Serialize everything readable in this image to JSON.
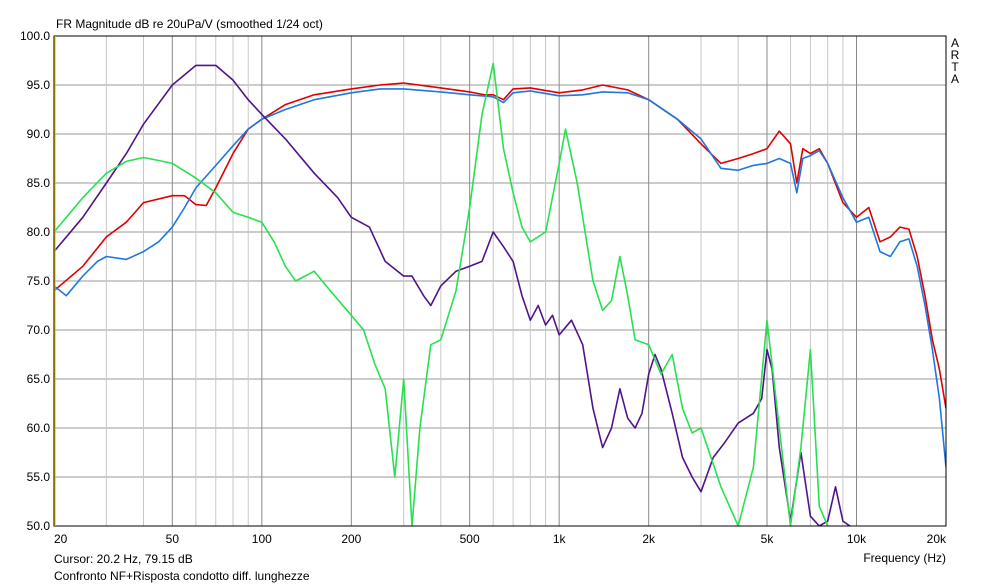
{
  "chart_data": {
    "type": "line",
    "title": "FR Magnitude dB re 20uPa/V (smoothed 1/24 oct)",
    "xlabel": "Frequency (Hz)",
    "ylabel": "",
    "x_scale": "log",
    "xlim": [
      20,
      20000
    ],
    "ylim": [
      50,
      100
    ],
    "grid": true,
    "y_ticks": [
      "100.0",
      "95.0",
      "90.0",
      "85.0",
      "80.0",
      "75.0",
      "70.0",
      "65.0",
      "60.0",
      "55.0",
      "50.0"
    ],
    "x_tick_labels": [
      {
        "f": 20,
        "label": "20"
      },
      {
        "f": 50,
        "label": "50"
      },
      {
        "f": 100,
        "label": "100"
      },
      {
        "f": 200,
        "label": "200"
      },
      {
        "f": 500,
        "label": "500"
      },
      {
        "f": 1000,
        "label": "1k"
      },
      {
        "f": 2000,
        "label": "2k"
      },
      {
        "f": 5000,
        "label": "5k"
      },
      {
        "f": 10000,
        "label": "10k"
      },
      {
        "f": 20000,
        "label": "20k"
      }
    ],
    "watermark": [
      "A",
      "R",
      "T",
      "A"
    ],
    "series": [
      {
        "color": "#e00000",
        "points": [
          [
            20,
            74.0
          ],
          [
            25,
            76.5
          ],
          [
            30,
            79.5
          ],
          [
            35,
            81.0
          ],
          [
            40,
            83.0
          ],
          [
            50,
            83.7
          ],
          [
            55,
            83.7
          ],
          [
            60,
            82.8
          ],
          [
            65,
            82.7
          ],
          [
            70,
            84.5
          ],
          [
            80,
            88.0
          ],
          [
            90,
            90.5
          ],
          [
            100,
            91.5
          ],
          [
            120,
            93.0
          ],
          [
            150,
            94.0
          ],
          [
            200,
            94.6
          ],
          [
            250,
            95.0
          ],
          [
            300,
            95.2
          ],
          [
            400,
            94.7
          ],
          [
            500,
            94.3
          ],
          [
            560,
            94.0
          ],
          [
            600,
            94.0
          ],
          [
            650,
            93.5
          ],
          [
            700,
            94.6
          ],
          [
            800,
            94.7
          ],
          [
            1000,
            94.2
          ],
          [
            1200,
            94.5
          ],
          [
            1400,
            95.0
          ],
          [
            1700,
            94.5
          ],
          [
            2000,
            93.5
          ],
          [
            2500,
            91.5
          ],
          [
            3000,
            89.0
          ],
          [
            3500,
            87.0
          ],
          [
            4000,
            87.5
          ],
          [
            4500,
            88.0
          ],
          [
            5000,
            88.5
          ],
          [
            5500,
            90.3
          ],
          [
            6000,
            89.0
          ],
          [
            6300,
            85.0
          ],
          [
            6600,
            88.5
          ],
          [
            7000,
            88.0
          ],
          [
            7500,
            88.5
          ],
          [
            8000,
            87.0
          ],
          [
            9000,
            83.0
          ],
          [
            10000,
            81.5
          ],
          [
            11000,
            82.5
          ],
          [
            12000,
            79.0
          ],
          [
            13000,
            79.5
          ],
          [
            14000,
            80.5
          ],
          [
            15000,
            80.3
          ],
          [
            16000,
            77.5
          ],
          [
            17000,
            73.5
          ],
          [
            18000,
            69.0
          ],
          [
            19000,
            66.0
          ],
          [
            20000,
            62.0
          ]
        ]
      },
      {
        "color": "#1e78e0",
        "points": [
          [
            20,
            74.5
          ],
          [
            22,
            73.5
          ],
          [
            25,
            75.5
          ],
          [
            28,
            77.0
          ],
          [
            30,
            77.5
          ],
          [
            35,
            77.2
          ],
          [
            40,
            78.0
          ],
          [
            45,
            79.0
          ],
          [
            50,
            80.5
          ],
          [
            55,
            82.5
          ],
          [
            60,
            84.5
          ],
          [
            70,
            86.8
          ],
          [
            80,
            88.8
          ],
          [
            90,
            90.5
          ],
          [
            100,
            91.5
          ],
          [
            120,
            92.5
          ],
          [
            150,
            93.5
          ],
          [
            200,
            94.2
          ],
          [
            250,
            94.6
          ],
          [
            300,
            94.6
          ],
          [
            400,
            94.3
          ],
          [
            500,
            94.0
          ],
          [
            600,
            93.8
          ],
          [
            650,
            93.2
          ],
          [
            700,
            94.2
          ],
          [
            800,
            94.4
          ],
          [
            1000,
            93.9
          ],
          [
            1200,
            94.0
          ],
          [
            1400,
            94.3
          ],
          [
            1700,
            94.2
          ],
          [
            2000,
            93.5
          ],
          [
            2500,
            91.5
          ],
          [
            3000,
            89.5
          ],
          [
            3500,
            86.5
          ],
          [
            4000,
            86.3
          ],
          [
            4500,
            86.8
          ],
          [
            5000,
            87.0
          ],
          [
            5500,
            87.5
          ],
          [
            6000,
            87.0
          ],
          [
            6300,
            84.0
          ],
          [
            6600,
            87.5
          ],
          [
            7000,
            87.8
          ],
          [
            7500,
            88.3
          ],
          [
            8000,
            87.0
          ],
          [
            9000,
            83.5
          ],
          [
            10000,
            81.0
          ],
          [
            11000,
            81.5
          ],
          [
            12000,
            78.0
          ],
          [
            13000,
            77.5
          ],
          [
            14000,
            79.0
          ],
          [
            15000,
            79.3
          ],
          [
            16000,
            76.5
          ],
          [
            17000,
            72.5
          ],
          [
            18000,
            68.0
          ],
          [
            19000,
            63.0
          ],
          [
            20000,
            56.0
          ]
        ]
      },
      {
        "color": "#50148a",
        "points": [
          [
            20,
            78.0
          ],
          [
            25,
            81.5
          ],
          [
            30,
            85.0
          ],
          [
            35,
            88.0
          ],
          [
            40,
            91.0
          ],
          [
            50,
            95.0
          ],
          [
            60,
            97.0
          ],
          [
            70,
            97.0
          ],
          [
            80,
            95.5
          ],
          [
            90,
            93.5
          ],
          [
            100,
            92.0
          ],
          [
            120,
            89.5
          ],
          [
            150,
            86.0
          ],
          [
            180,
            83.5
          ],
          [
            200,
            81.5
          ],
          [
            230,
            80.5
          ],
          [
            260,
            77.0
          ],
          [
            300,
            75.5
          ],
          [
            320,
            75.5
          ],
          [
            350,
            73.5
          ],
          [
            370,
            72.5
          ],
          [
            400,
            74.5
          ],
          [
            450,
            76.0
          ],
          [
            500,
            76.5
          ],
          [
            550,
            77.0
          ],
          [
            600,
            80.0
          ],
          [
            650,
            78.5
          ],
          [
            700,
            77.0
          ],
          [
            750,
            73.5
          ],
          [
            800,
            71.0
          ],
          [
            850,
            72.5
          ],
          [
            900,
            70.5
          ],
          [
            950,
            71.5
          ],
          [
            1000,
            69.5
          ],
          [
            1100,
            71.0
          ],
          [
            1200,
            68.5
          ],
          [
            1300,
            62.0
          ],
          [
            1400,
            58.0
          ],
          [
            1500,
            60.0
          ],
          [
            1600,
            64.0
          ],
          [
            1700,
            61.0
          ],
          [
            1800,
            60.0
          ],
          [
            1900,
            61.5
          ],
          [
            2000,
            65.5
          ],
          [
            2100,
            67.5
          ],
          [
            2200,
            66.0
          ],
          [
            2400,
            61.5
          ],
          [
            2600,
            57.0
          ],
          [
            2800,
            55.0
          ],
          [
            3000,
            53.5
          ],
          [
            3300,
            57.0
          ],
          [
            3600,
            58.5
          ],
          [
            4000,
            60.5
          ],
          [
            4500,
            61.5
          ],
          [
            4800,
            63.0
          ],
          [
            5000,
            68.0
          ],
          [
            5200,
            66.0
          ],
          [
            5500,
            58.0
          ],
          [
            6000,
            50.5
          ],
          [
            6500,
            57.5
          ],
          [
            7000,
            51.0
          ],
          [
            7500,
            50.0
          ],
          [
            8000,
            50.5
          ],
          [
            8500,
            54.0
          ],
          [
            9000,
            50.5
          ],
          [
            9500,
            50.0
          ]
        ]
      },
      {
        "color": "#28e050",
        "points": [
          [
            20,
            80.0
          ],
          [
            25,
            83.5
          ],
          [
            30,
            86.0
          ],
          [
            35,
            87.2
          ],
          [
            40,
            87.6
          ],
          [
            45,
            87.3
          ],
          [
            50,
            87.0
          ],
          [
            60,
            85.5
          ],
          [
            70,
            84.0
          ],
          [
            80,
            82.0
          ],
          [
            90,
            81.5
          ],
          [
            100,
            81.0
          ],
          [
            110,
            79.0
          ],
          [
            120,
            76.5
          ],
          [
            130,
            75.0
          ],
          [
            150,
            76.0
          ],
          [
            170,
            74.0
          ],
          [
            200,
            71.5
          ],
          [
            220,
            70.0
          ],
          [
            240,
            66.5
          ],
          [
            260,
            64.0
          ],
          [
            280,
            55.0
          ],
          [
            300,
            65.0
          ],
          [
            320,
            50.0
          ],
          [
            340,
            60.0
          ],
          [
            370,
            68.5
          ],
          [
            400,
            69.0
          ],
          [
            450,
            74.0
          ],
          [
            500,
            82.5
          ],
          [
            550,
            92.0
          ],
          [
            600,
            97.2
          ],
          [
            650,
            88.5
          ],
          [
            700,
            84.0
          ],
          [
            750,
            80.5
          ],
          [
            800,
            79.0
          ],
          [
            900,
            80.0
          ],
          [
            1000,
            87.0
          ],
          [
            1050,
            90.5
          ],
          [
            1150,
            85.0
          ],
          [
            1300,
            75.0
          ],
          [
            1400,
            72.0
          ],
          [
            1500,
            73.0
          ],
          [
            1600,
            77.5
          ],
          [
            1700,
            73.5
          ],
          [
            1800,
            69.0
          ],
          [
            2000,
            68.5
          ],
          [
            2200,
            65.5
          ],
          [
            2400,
            67.5
          ],
          [
            2600,
            62.0
          ],
          [
            2800,
            59.5
          ],
          [
            3000,
            60.0
          ],
          [
            3500,
            54.0
          ],
          [
            4000,
            50.0
          ],
          [
            4500,
            56.0
          ],
          [
            5000,
            71.0
          ],
          [
            5500,
            60.0
          ],
          [
            6000,
            50.0
          ],
          [
            6500,
            58.0
          ],
          [
            7000,
            68.0
          ],
          [
            7500,
            52.0
          ],
          [
            8000,
            50.0
          ]
        ]
      }
    ]
  },
  "status": {
    "cursor": "Cursor: 20.2 Hz, 79.15 dB",
    "description": "Confronto NF+Risposta condotto diff. lunghezze"
  }
}
